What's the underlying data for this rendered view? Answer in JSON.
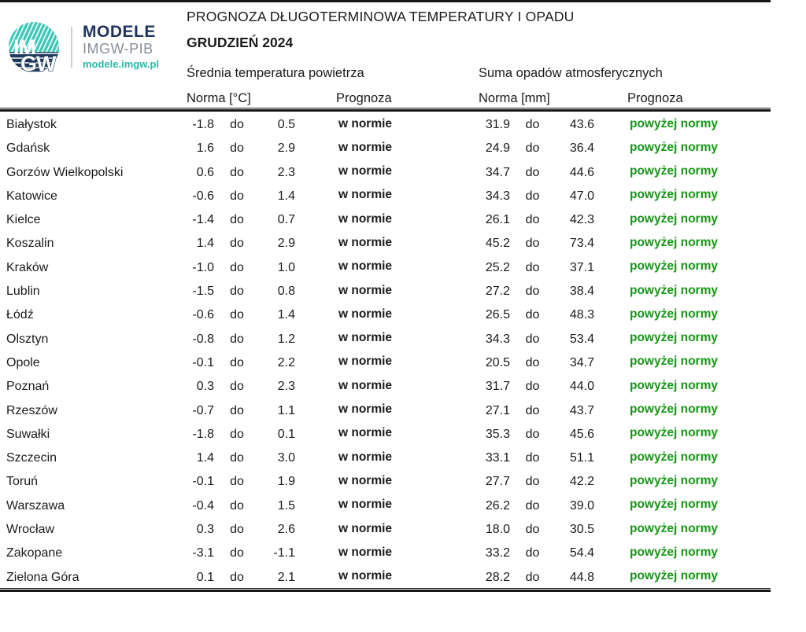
{
  "logo": {
    "circle_text_top": "IM",
    "circle_text_bottom": "GW",
    "brand": "MODELE",
    "org": "IMGW-PIB",
    "site": "modele.imgw.pl"
  },
  "header": {
    "title": "PROGNOZA DŁUGOTERMINOWA TEMPERATURY I OPADU",
    "subtitle": "GRUDZIEŃ 2024"
  },
  "table": {
    "group_headers": {
      "temperature": "Średnia temperatura powietrza",
      "precipitation": "Suma opadów atmosferycznych"
    },
    "col_headers": {
      "temp_norm": "Norma [°C]",
      "temp_forecast": "Prognoza",
      "precip_norm": "Norma [mm]",
      "precip_forecast": "Prognoza"
    },
    "do_label": "do",
    "rows": [
      {
        "city": "Białystok",
        "t_min": "-1.8",
        "t_max": "0.5",
        "t_prog": "w normie",
        "p_min": "31.9",
        "p_max": "43.6",
        "p_prog": "powyżej normy"
      },
      {
        "city": "Gdańsk",
        "t_min": "1.6",
        "t_max": "2.9",
        "t_prog": "w normie",
        "p_min": "24.9",
        "p_max": "36.4",
        "p_prog": "powyżej normy"
      },
      {
        "city": "Gorzów Wielkopolski",
        "t_min": "0.6",
        "t_max": "2.3",
        "t_prog": "w normie",
        "p_min": "34.7",
        "p_max": "44.6",
        "p_prog": "powyżej normy"
      },
      {
        "city": "Katowice",
        "t_min": "-0.6",
        "t_max": "1.4",
        "t_prog": "w normie",
        "p_min": "34.3",
        "p_max": "47.0",
        "p_prog": "powyżej normy"
      },
      {
        "city": "Kielce",
        "t_min": "-1.4",
        "t_max": "0.7",
        "t_prog": "w normie",
        "p_min": "26.1",
        "p_max": "42.3",
        "p_prog": "powyżej normy"
      },
      {
        "city": "Koszalin",
        "t_min": "1.4",
        "t_max": "2.9",
        "t_prog": "w normie",
        "p_min": "45.2",
        "p_max": "73.4",
        "p_prog": "powyżej normy"
      },
      {
        "city": "Kraków",
        "t_min": "-1.0",
        "t_max": "1.0",
        "t_prog": "w normie",
        "p_min": "25.2",
        "p_max": "37.1",
        "p_prog": "powyżej normy"
      },
      {
        "city": "Lublin",
        "t_min": "-1.5",
        "t_max": "0.8",
        "t_prog": "w normie",
        "p_min": "27.2",
        "p_max": "38.4",
        "p_prog": "powyżej normy"
      },
      {
        "city": "Łódź",
        "t_min": "-0.6",
        "t_max": "1.4",
        "t_prog": "w normie",
        "p_min": "26.5",
        "p_max": "48.3",
        "p_prog": "powyżej normy"
      },
      {
        "city": "Olsztyn",
        "t_min": "-0.8",
        "t_max": "1.2",
        "t_prog": "w normie",
        "p_min": "34.3",
        "p_max": "53.4",
        "p_prog": "powyżej normy"
      },
      {
        "city": "Opole",
        "t_min": "-0.1",
        "t_max": "2.2",
        "t_prog": "w normie",
        "p_min": "20.5",
        "p_max": "34.7",
        "p_prog": "powyżej normy"
      },
      {
        "city": "Poznań",
        "t_min": "0.3",
        "t_max": "2.3",
        "t_prog": "w normie",
        "p_min": "31.7",
        "p_max": "44.0",
        "p_prog": "powyżej normy"
      },
      {
        "city": "Rzeszów",
        "t_min": "-0.7",
        "t_max": "1.1",
        "t_prog": "w normie",
        "p_min": "27.1",
        "p_max": "43.7",
        "p_prog": "powyżej normy"
      },
      {
        "city": "Suwałki",
        "t_min": "-1.8",
        "t_max": "0.1",
        "t_prog": "w normie",
        "p_min": "35.3",
        "p_max": "45.6",
        "p_prog": "powyżej normy"
      },
      {
        "city": "Szczecin",
        "t_min": "1.4",
        "t_max": "3.0",
        "t_prog": "w normie",
        "p_min": "33.1",
        "p_max": "51.1",
        "p_prog": "powyżej normy"
      },
      {
        "city": "Toruń",
        "t_min": "-0.1",
        "t_max": "1.9",
        "t_prog": "w normie",
        "p_min": "27.7",
        "p_max": "42.2",
        "p_prog": "powyżej normy"
      },
      {
        "city": "Warszawa",
        "t_min": "-0.4",
        "t_max": "1.5",
        "t_prog": "w normie",
        "p_min": "26.2",
        "p_max": "39.0",
        "p_prog": "powyżej normy"
      },
      {
        "city": "Wrocław",
        "t_min": "0.3",
        "t_max": "2.6",
        "t_prog": "w normie",
        "p_min": "18.0",
        "p_max": "30.5",
        "p_prog": "powyżej normy"
      },
      {
        "city": "Zakopane",
        "t_min": "-3.1",
        "t_max": "-1.1",
        "t_prog": "w normie",
        "p_min": "33.2",
        "p_max": "54.4",
        "p_prog": "powyżej normy"
      },
      {
        "city": "Zielona Góra",
        "t_min": "0.1",
        "t_max": "2.1",
        "t_prog": "w normie",
        "p_min": "28.2",
        "p_max": "44.8",
        "p_prog": "powyżej normy"
      }
    ]
  },
  "colors": {
    "forecast_green": "#179517",
    "logo_navy": "#1d3a5c",
    "logo_teal": "#3cc6b6",
    "logo_gray": "#878e96",
    "line_black": "#161616"
  }
}
